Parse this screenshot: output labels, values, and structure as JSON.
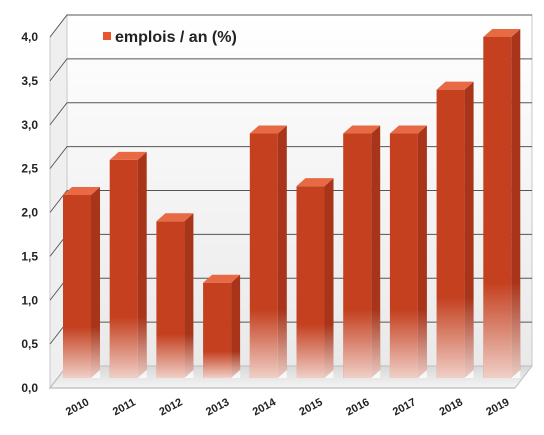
{
  "chart_data": {
    "type": "bar",
    "categories": [
      "2010",
      "2011",
      "2012",
      "2013",
      "2014",
      "2015",
      "2016",
      "2017",
      "2018",
      "2019"
    ],
    "series": [
      {
        "name": "emplois / an (%)",
        "values": [
          2.2,
          2.6,
          1.9,
          1.2,
          2.9,
          2.3,
          2.9,
          2.9,
          3.4,
          4.0
        ]
      }
    ],
    "ylim": [
      0,
      4.0
    ],
    "yticks": [
      "0,0",
      "0,5",
      "1,0",
      "1,5",
      "2,0",
      "2,5",
      "3,0",
      "3,5",
      "4,0"
    ],
    "grid": true,
    "legend_position": "top-left",
    "bar_color": "#c4401f",
    "bar_top_color": "#e86a45",
    "bar_side_color": "#a8351a",
    "legend_marker_color": "#e8552e"
  }
}
